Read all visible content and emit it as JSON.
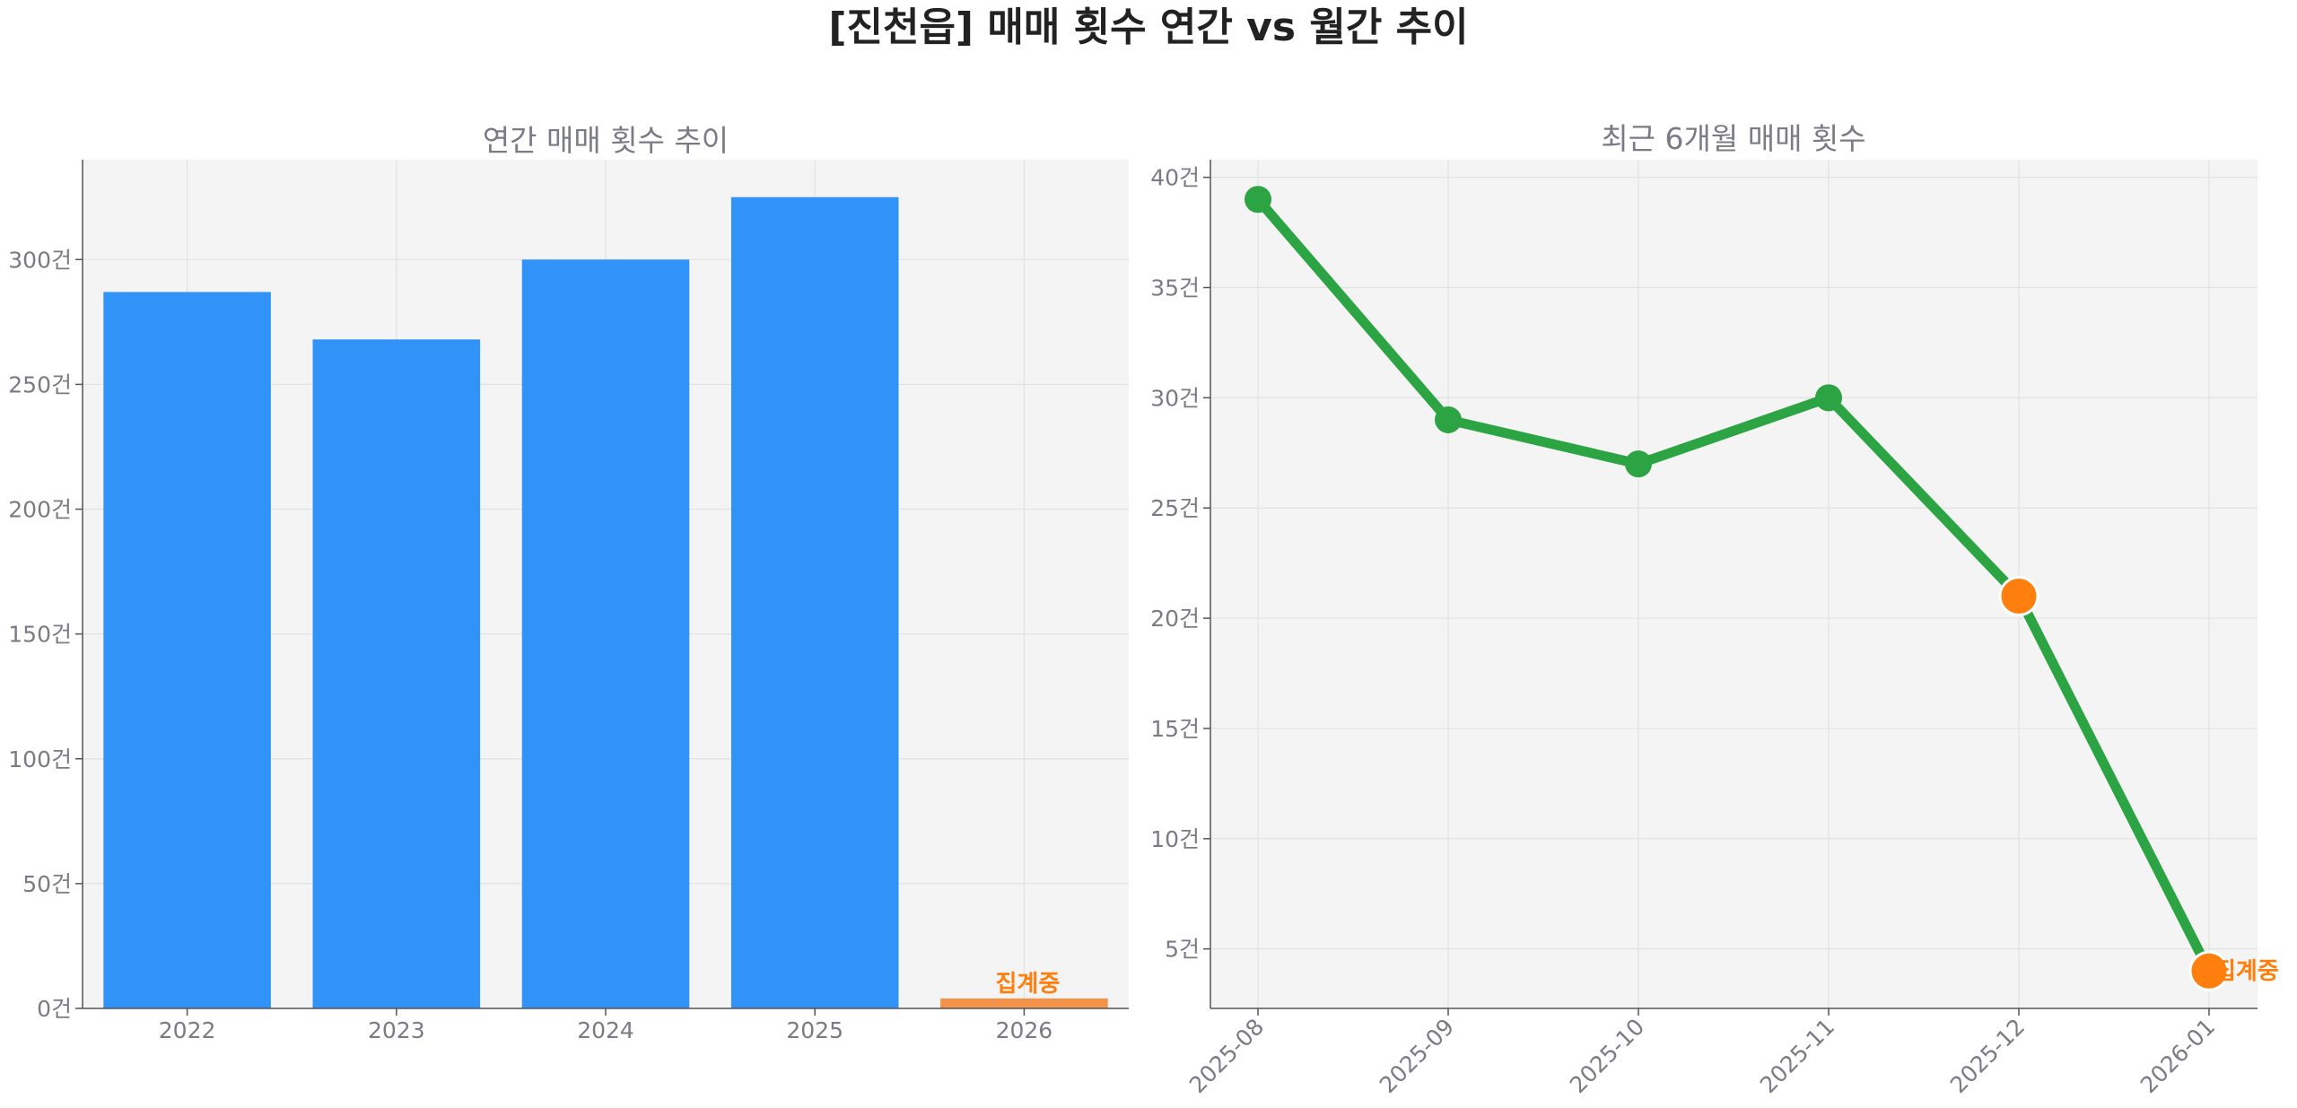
{
  "title": "[진천읍] 매매 횟수 연간 vs 월간 추이",
  "chart_data": [
    {
      "type": "bar",
      "title": "연간 매매 횟수 추이",
      "categories": [
        "2022",
        "2023",
        "2024",
        "2025",
        "2026"
      ],
      "values": [
        287,
        268,
        300,
        325,
        4
      ],
      "ylim": [
        0,
        340
      ],
      "yticks": [
        0,
        50,
        100,
        150,
        200,
        250,
        300
      ],
      "ytick_labels": [
        "0건",
        "50건",
        "100건",
        "150건",
        "200건",
        "250건",
        "300건"
      ],
      "grid": true,
      "colors": {
        "bar": "#3192f8",
        "partial": "#f5924a"
      },
      "partial_index": 4,
      "annotation": "집계중"
    },
    {
      "type": "line",
      "title": "최근 6개월 매매 횟수",
      "x": [
        "2025-08",
        "2025-09",
        "2025-10",
        "2025-11",
        "2025-12",
        "2026-01"
      ],
      "values": [
        39,
        29,
        27,
        30,
        21,
        4
      ],
      "ylim": [
        2.3,
        40.8
      ],
      "yticks": [
        5,
        10,
        15,
        20,
        25,
        30,
        35,
        40
      ],
      "ytick_labels": [
        "5건",
        "10건",
        "15건",
        "20건",
        "25건",
        "30건",
        "35건",
        "40건"
      ],
      "grid": true,
      "colors": {
        "line": "#2ca444",
        "highlight": "#ff7f0e"
      },
      "highlight_indices": [
        4,
        5
      ],
      "annotation": "집계중"
    }
  ]
}
